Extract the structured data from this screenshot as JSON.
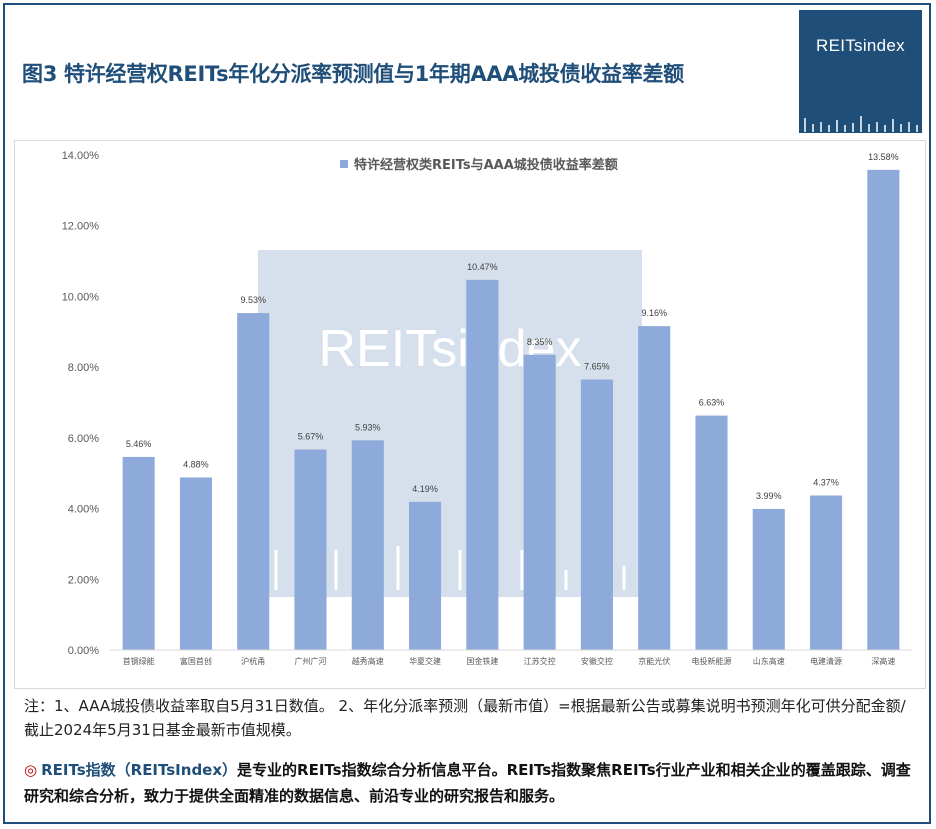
{
  "title": "图3  特许经营权REITs年化分派率预测值与1年期AAA城投债收益率差额",
  "logo": {
    "text": "REITsindex"
  },
  "watermark": {
    "text": "REITsindex"
  },
  "chart_data": {
    "type": "bar",
    "legend": {
      "label": "特许经营权类REITs与AAA城投债收益率差额",
      "position": "top"
    },
    "categories": [
      "首钢绿能",
      "富国首创",
      "沪杭甬",
      "广州广河",
      "越秀高速",
      "华夏交建",
      "国金铁建",
      "江苏交控",
      "安徽交控",
      "京能光伏",
      "电投新能源",
      "山东高速",
      "电建清源",
      "深高速"
    ],
    "values": [
      5.46,
      4.88,
      9.53,
      5.67,
      5.93,
      4.19,
      10.47,
      8.35,
      7.65,
      9.16,
      6.63,
      3.99,
      4.37,
      13.58
    ],
    "value_labels": [
      "5.46%",
      "4.88%",
      "9.53%",
      "5.67%",
      "5.93%",
      "4.19%",
      "10.47%",
      "8.35%",
      "7.65%",
      "9.16%",
      "6.63%",
      "3.99%",
      "4.37%",
      "13.58%"
    ],
    "y_ticks": [
      "0.00%",
      "2.00%",
      "4.00%",
      "6.00%",
      "8.00%",
      "10.00%",
      "12.00%",
      "14.00%"
    ],
    "ylim": [
      0,
      14
    ],
    "grid": false,
    "bar_color": "#8eaadb"
  },
  "note": {
    "text": "注：1、AAA城投债收益率取自5月31日数值。  2、年化分派率预测（最新市值）=根据最新公告或募集说明书预测年化可供分配金额/截止2024年5月31日基金最新市值规模。"
  },
  "about": {
    "bullet": "◎",
    "brand": "REITs指数（REITsIndex）",
    "text": "是专业的REITs指数综合分析信息平台。REITs指数聚焦REITs行业产业和相关企业的覆盖跟踪、调查研究和综合分析，致力于提供全面精准的数据信息、前沿专业的研究报告和服务。"
  },
  "colors": {
    "brand_blue": "#1f4e79",
    "bar": "#8eaadb",
    "accent_red": "#c00000"
  }
}
